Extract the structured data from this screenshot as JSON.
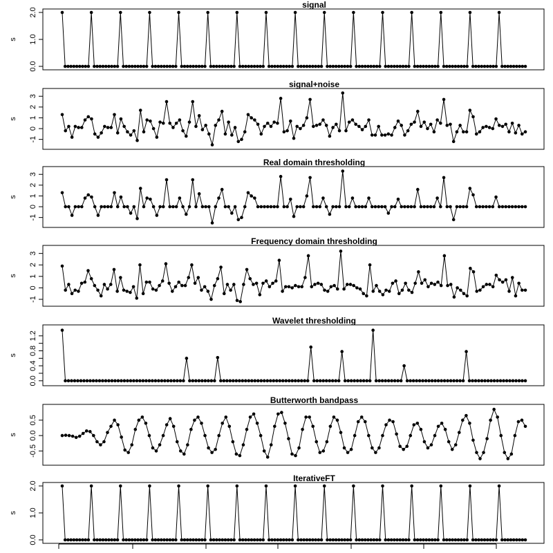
{
  "figure": {
    "background": "#ffffff",
    "line_color": "#000000"
  },
  "chart_data": [
    {
      "type": "line",
      "title": "signal",
      "ylabel": "s",
      "ylim": [
        0,
        2
      ],
      "yticks": [
        0,
        1,
        2
      ],
      "ytick_labels": [
        "0.0",
        "1.0",
        "2.0"
      ],
      "series": [
        {
          "values": [
            2,
            0,
            0,
            0,
            0,
            0,
            0,
            0,
            0,
            0,
            2,
            0,
            0,
            0,
            0,
            0,
            0,
            0,
            0,
            0,
            2,
            0,
            0,
            0,
            0,
            0,
            0,
            0,
            0,
            0,
            2,
            0,
            0,
            0,
            0,
            0,
            0,
            0,
            0,
            0,
            2,
            0,
            0,
            0,
            0,
            0,
            0,
            0,
            0,
            0,
            2,
            0,
            0,
            0,
            0,
            0,
            0,
            0,
            0,
            0,
            2,
            0,
            0,
            0,
            0,
            0,
            0,
            0,
            0,
            0,
            2,
            0,
            0,
            0,
            0,
            0,
            0,
            0,
            0,
            0,
            2,
            0,
            0,
            0,
            0,
            0,
            0,
            0,
            0,
            0,
            2,
            0,
            0,
            0,
            0,
            0,
            0,
            0,
            0,
            0,
            2,
            0,
            0,
            0,
            0,
            0,
            0,
            0,
            0,
            0,
            2,
            0,
            0,
            0,
            0,
            0,
            0,
            0,
            0,
            0,
            2,
            0,
            0,
            0,
            0,
            0,
            0,
            0,
            0,
            0,
            2,
            0,
            0,
            0,
            0,
            0,
            0,
            0,
            0,
            0,
            2,
            0,
            0,
            0,
            0,
            0,
            0,
            0,
            0,
            0,
            2,
            0,
            0,
            0,
            0,
            0,
            0,
            0,
            0,
            0
          ]
        }
      ]
    },
    {
      "type": "line",
      "title": "signal+noise",
      "ylabel": "s",
      "ylim": [
        -1.6,
        3.4
      ],
      "yticks": [
        -1,
        0,
        1,
        2,
        3
      ],
      "ytick_labels": [
        "-1",
        "0",
        "1",
        "2",
        "3"
      ],
      "series": [
        {
          "values": [
            1.3,
            -0.2,
            0.2,
            -0.8,
            0.2,
            0.1,
            0.1,
            0.8,
            1.1,
            0.9,
            -0.5,
            -0.8,
            -0.4,
            0.2,
            0.1,
            0.1,
            1.3,
            -0.4,
            0.9,
            0.2,
            -0.3,
            -0.6,
            -0.2,
            -1.1,
            1.7,
            -0.3,
            0.8,
            0.7,
            0,
            -0.8,
            0.6,
            0.5,
            2.5,
            0.5,
            0.1,
            0.5,
            0.8,
            -0.2,
            -0.7,
            0.6,
            2.5,
            0.2,
            1.2,
            -0.1,
            0.3,
            -0.5,
            -1.5,
            0.3,
            0.8,
            1.6,
            -0.5,
            0.6,
            -0.6,
            0.1,
            -1.2,
            -1.0,
            -0.3,
            1.3,
            1.0,
            0.8,
            0.4,
            -0.5,
            0.2,
            0.5,
            0.2,
            0.6,
            0.5,
            2.8,
            -0.3,
            -0.2,
            0.7,
            -0.9,
            0.2,
            0.0,
            0.3,
            1.0,
            2.7,
            0.2,
            0.3,
            0.4,
            0.8,
            0.3,
            -0.7,
            0.1,
            0.4,
            -0.2,
            3.3,
            -0.2,
            0.6,
            0.8,
            0.4,
            0.2,
            -0.1,
            0.2,
            0.8,
            -0.6,
            -0.6,
            0.2,
            -0.6,
            -0.6,
            -0.5,
            -0.6,
            0.1,
            0.7,
            0.3,
            -0.6,
            -0.2,
            0.4,
            0.6,
            1.6,
            0.2,
            0.6,
            0.0,
            0.4,
            -0.3,
            0.8,
            0.5,
            2.7,
            0.3,
            0.4,
            -1.2,
            -0.3,
            0.3,
            -0.3,
            -0.3,
            1.7,
            1.1,
            -0.5,
            -0.3,
            0.1,
            0.2,
            0.1,
            0.0,
            0.9,
            0.3,
            0.2,
            0.4,
            -0.3,
            0.5,
            -0.4,
            0.3,
            -0.5,
            -0.3
          ]
        }
      ]
    },
    {
      "type": "line",
      "title": "Real domain thresholding",
      "ylabel": "s",
      "ylim": [
        -1.6,
        3.4
      ],
      "yticks": [
        -1,
        0,
        1,
        2,
        3
      ],
      "ytick_labels": [
        "-1",
        "0",
        "1",
        "2",
        "3"
      ],
      "series": [
        {
          "values": [
            1.3,
            0,
            0,
            -0.8,
            0,
            0,
            0,
            0.8,
            1.1,
            0.9,
            0,
            -0.8,
            0,
            0,
            0,
            0,
            1.3,
            0,
            0.9,
            0,
            0,
            -0.6,
            0,
            -1.1,
            1.7,
            0,
            0.8,
            0.7,
            0,
            -0.8,
            0,
            0,
            2.5,
            0,
            0,
            0,
            0.8,
            0,
            -0.7,
            0,
            2.5,
            0,
            1.2,
            0,
            0,
            0,
            -1.5,
            0,
            0.8,
            1.6,
            0,
            0,
            -0.6,
            0,
            -1.2,
            -1.0,
            0,
            1.3,
            1.0,
            0.8,
            0,
            0,
            0,
            0,
            0,
            0,
            0,
            2.8,
            0,
            0,
            0.7,
            -0.9,
            0,
            0,
            0,
            1.0,
            2.7,
            0,
            0,
            0,
            0.8,
            0,
            -0.7,
            0,
            0,
            0,
            3.3,
            0,
            0,
            0.8,
            0,
            0,
            0,
            0,
            0.8,
            0,
            0,
            0,
            0,
            0,
            -0.6,
            0,
            0,
            0.7,
            0,
            0,
            0,
            0,
            0,
            1.6,
            0,
            0,
            0,
            0,
            0,
            0.8,
            0,
            2.7,
            0,
            0,
            -1.2,
            0,
            0,
            0,
            0,
            1.7,
            1.1,
            0,
            0,
            0,
            0,
            0,
            0,
            0.9,
            0,
            0,
            0,
            0,
            0,
            0,
            0,
            0,
            0
          ]
        }
      ]
    },
    {
      "type": "line",
      "title": "Frequency domain thresholding",
      "ylabel": "s",
      "ylim": [
        -1.3,
        3.4
      ],
      "yticks": [
        -1,
        0,
        1,
        2,
        3
      ],
      "ytick_labels": [
        "-1",
        "0",
        "1",
        "2",
        "3"
      ],
      "series": [
        {
          "values": [
            1.9,
            -0.2,
            0.3,
            -0.5,
            -0.2,
            -0.3,
            0.4,
            0.5,
            1.5,
            0.8,
            0.2,
            -0.2,
            -0.7,
            0.3,
            -0.1,
            0.3,
            1.6,
            -0.3,
            0.9,
            -0.2,
            -0.3,
            -0.4,
            0.1,
            -0.9,
            2.0,
            -0.5,
            0.5,
            0.5,
            -0.1,
            -0.2,
            0.2,
            0.6,
            2.1,
            0.4,
            -0.3,
            0.1,
            0.5,
            0.2,
            0.2,
            0.9,
            2.0,
            0.4,
            0.9,
            -0.2,
            0.1,
            -0.3,
            -1.0,
            0.2,
            0.8,
            1.8,
            -0.5,
            0.3,
            -0.2,
            0.3,
            -1.1,
            -1.2,
            0.3,
            1.6,
            0.8,
            0.3,
            0.4,
            -0.6,
            0.4,
            0.6,
            0.1,
            0.4,
            0.6,
            2.4,
            -0.3,
            0.1,
            0.1,
            0.0,
            0.2,
            0.1,
            0.1,
            0.9,
            2.8,
            0.1,
            0.3,
            0.4,
            0.3,
            -0.2,
            -0.3,
            0.1,
            0.2,
            -0.1,
            3.2,
            -0.1,
            0.3,
            0.3,
            0.2,
            0.0,
            -0.1,
            -0.5,
            -0.7,
            2.0,
            -0.3,
            0.2,
            -0.3,
            -0.6,
            -0.2,
            -0.3,
            0.4,
            0.6,
            -0.5,
            -0.2,
            0.4,
            -0.2,
            -0.4,
            0.4,
            1.4,
            0.4,
            0.7,
            0.1,
            0.4,
            0.3,
            0.5,
            0.2,
            2.8,
            0.2,
            0.3,
            -0.8,
            0.0,
            -0.2,
            -0.5,
            -0.7,
            1.7,
            1.4,
            -0.3,
            -0.2,
            0.1,
            0.3,
            0.3,
            0.1,
            1.1,
            0.7,
            0.5,
            0.7,
            -0.3,
            0.9,
            -0.7,
            0.4,
            -0.2,
            -0.2
          ]
        }
      ]
    },
    {
      "type": "line",
      "title": "Wavelet thresholding",
      "ylabel": "s",
      "ylim": [
        -0.04,
        1.4
      ],
      "yticks": [
        0,
        0.2,
        0.4,
        0.6,
        0.8,
        1.0,
        1.2
      ],
      "ytick_labels": [
        "0.0",
        "",
        "0.4",
        "",
        "0.8",
        "",
        "1.2"
      ],
      "series": [
        {
          "values": [
            1.35,
            0,
            0,
            0,
            0,
            0,
            0,
            0,
            0,
            0,
            0,
            0,
            0,
            0,
            0,
            0,
            0,
            0,
            0,
            0,
            0,
            0,
            0,
            0,
            0,
            0,
            0,
            0,
            0,
            0,
            0,
            0,
            0,
            0,
            0,
            0,
            0,
            0,
            0,
            0,
            0.6,
            0,
            0,
            0,
            0,
            0,
            0,
            0,
            0,
            0,
            0.62,
            0,
            0,
            0,
            0,
            0,
            0,
            0,
            0,
            0,
            0,
            0,
            0,
            0,
            0,
            0,
            0,
            0,
            0,
            0,
            0,
            0,
            0,
            0,
            0,
            0,
            0,
            0,
            0,
            0,
            0.9,
            0,
            0,
            0,
            0,
            0,
            0,
            0,
            0,
            0,
            0.78,
            0,
            0,
            0,
            0,
            0,
            0,
            0,
            0,
            0,
            1.35,
            0,
            0,
            0,
            0,
            0,
            0,
            0,
            0,
            0,
            0.4,
            0,
            0,
            0,
            0,
            0,
            0,
            0,
            0,
            0,
            0,
            0,
            0,
            0,
            0,
            0,
            0,
            0,
            0,
            0,
            0.78,
            0,
            0,
            0,
            0,
            0,
            0,
            0,
            0,
            0,
            0,
            0,
            0,
            0,
            0,
            0,
            0,
            0,
            0,
            0
          ]
        }
      ]
    },
    {
      "type": "line",
      "title": "Butterworth bandpass",
      "ylabel": "s",
      "ylim": [
        -0.85,
        0.9
      ],
      "yticks": [
        -0.5,
        0,
        0.5
      ],
      "ytick_labels": [
        "-0.5",
        "0.0",
        "0.5"
      ],
      "series": [
        {
          "values": [
            0.0,
            0.01,
            0.0,
            -0.02,
            -0.06,
            -0.02,
            0.07,
            0.15,
            0.13,
            0.0,
            -0.2,
            -0.3,
            -0.2,
            0.1,
            0.3,
            0.5,
            0.35,
            -0.05,
            -0.47,
            -0.55,
            -0.3,
            0.2,
            0.5,
            0.6,
            0.4,
            0.0,
            -0.4,
            -0.5,
            -0.3,
            0.0,
            0.35,
            0.55,
            0.3,
            -0.2,
            -0.5,
            -0.6,
            -0.3,
            0.2,
            0.5,
            0.6,
            0.4,
            0.0,
            -0.4,
            -0.55,
            -0.45,
            0.0,
            0.4,
            0.6,
            0.3,
            -0.2,
            -0.6,
            -0.65,
            -0.3,
            0.2,
            0.6,
            0.7,
            0.4,
            0.0,
            -0.5,
            -0.7,
            -0.3,
            0.3,
            0.7,
            0.75,
            0.4,
            -0.1,
            -0.6,
            -0.65,
            -0.4,
            0.2,
            0.6,
            0.6,
            0.3,
            -0.2,
            -0.55,
            -0.5,
            -0.2,
            0.3,
            0.6,
            0.5,
            0.1,
            -0.4,
            -0.55,
            -0.45,
            0.0,
            0.45,
            0.6,
            0.45,
            0.0,
            -0.4,
            -0.55,
            -0.4,
            0.0,
            0.35,
            0.5,
            0.45,
            0.05,
            -0.35,
            -0.45,
            -0.35,
            0.0,
            0.35,
            0.4,
            0.2,
            -0.2,
            -0.4,
            -0.3,
            0.0,
            0.3,
            0.4,
            0.2,
            -0.2,
            -0.45,
            -0.3,
            0.1,
            0.5,
            0.65,
            0.4,
            -0.15,
            -0.55,
            -0.75,
            -0.55,
            -0.1,
            0.5,
            0.85,
            0.6,
            0.0,
            -0.55,
            -0.75,
            -0.6,
            0.0,
            0.45,
            0.5,
            0.3
          ]
        }
      ]
    },
    {
      "type": "line",
      "title": "IterativeFT",
      "ylabel": "s",
      "ylim": [
        0,
        2
      ],
      "yticks": [
        0,
        1,
        2
      ],
      "ytick_labels": [
        "0.0",
        "1.0",
        "2.0"
      ],
      "series": [
        {
          "values": [
            2,
            0,
            0,
            0,
            0,
            0,
            0,
            0,
            0,
            0,
            2,
            0,
            0,
            0,
            0,
            0,
            0,
            0,
            0,
            0,
            2,
            0,
            0,
            0,
            0,
            0,
            0,
            0,
            0,
            0,
            2,
            0,
            0,
            0,
            0,
            0,
            0,
            0,
            0,
            0,
            2,
            0,
            0,
            0,
            0,
            0,
            0,
            0,
            0,
            0,
            2,
            0,
            0,
            0,
            0,
            0,
            0,
            0,
            0,
            0,
            2,
            0,
            0,
            0,
            0,
            0,
            0,
            0,
            0,
            0,
            2,
            0,
            0,
            0,
            0,
            0,
            0,
            0,
            0,
            0,
            2,
            0,
            0,
            0,
            0,
            0,
            0,
            0,
            0,
            0,
            2,
            0,
            0,
            0,
            0,
            0,
            0,
            0,
            0,
            0,
            2,
            0,
            0,
            0,
            0,
            0,
            0,
            0,
            0,
            0,
            2,
            0,
            0,
            0,
            0,
            0,
            0,
            0,
            0,
            0,
            2,
            0,
            0,
            0,
            0,
            0,
            0,
            0,
            0,
            0,
            2,
            0,
            0,
            0,
            0,
            0,
            0,
            0,
            0,
            0,
            2,
            0,
            0,
            0,
            0,
            0,
            0,
            0,
            0,
            0,
            2,
            0,
            0,
            0,
            0,
            0,
            0,
            0,
            0,
            0
          ]
        }
      ]
    }
  ]
}
